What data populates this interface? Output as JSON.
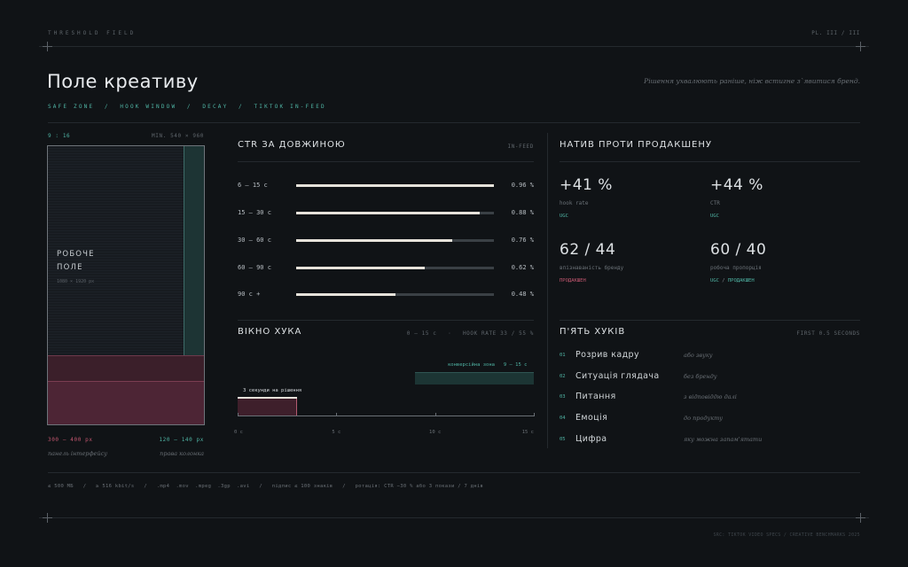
{
  "header": {
    "eyebrow": "THRESHOLD FIELD",
    "plate": "PL. III / III",
    "title": "Поле креативу",
    "tagline": "Рішення ухвалюють раніше, ніж встигне з`явитися бренд.",
    "subnav": "SAFE ZONE  /  HOOK WINDOW  /  DECAY  /  TIKTOK IN-FEED"
  },
  "phone": {
    "ratio": "9 : 16",
    "min": "MIN. 540 × 960",
    "work_line1": "РОБОЧЕ",
    "work_line2": "ПОЛЕ",
    "work_size": "1080 × 1920 px",
    "bottom_px": "300 – 400 px",
    "bottom_label": "панель інтерфейсу",
    "right_px": "120 – 140 px",
    "right_label": "права колонка"
  },
  "ctr": {
    "title": "CTR ЗА ДОВЖИНОЮ",
    "tag": "IN-FEED",
    "rows": [
      {
        "label": "6 – 15 с",
        "value": "0.96 %",
        "fraction": 1.0
      },
      {
        "label": "15 – 30 с",
        "value": "0.88 %",
        "fraction": 0.93
      },
      {
        "label": "30 – 60 с",
        "value": "0.76 %",
        "fraction": 0.79
      },
      {
        "label": "60 – 90 с",
        "value": "0.62 %",
        "fraction": 0.65
      },
      {
        "label": "90 с +",
        "value": "0.48 %",
        "fraction": 0.5
      }
    ]
  },
  "native": {
    "title": "НАТИВ ПРОТИ ПРОДАКШЕНУ",
    "stats": [
      {
        "value": "+41 %",
        "label": "hook rate",
        "tag": "UGC",
        "tag2": ""
      },
      {
        "value": "+44 %",
        "label": "CTR",
        "tag": "UGC",
        "tag2": ""
      },
      {
        "value": "62 / 44",
        "label": "впізнаваність бренду",
        "tag": "ПРОДАКШЕН",
        "tag2": ""
      },
      {
        "value": "60 / 40",
        "label": "робоча пропорція",
        "tag": "UGC",
        "tag2": "ПРОДАКШЕН"
      }
    ],
    "slash": "/"
  },
  "hook_window": {
    "title": "ВІКНО ХУКА",
    "meta": "0 – 15 с   ·   HOOK RATE 33 / 55 %",
    "conversion_label": "конверсійна зона   9 – 15 с",
    "decision_label": "3 секунди на рішення",
    "ticks": [
      "0 с",
      "5 с",
      "10 с",
      "15 с"
    ]
  },
  "hooks": {
    "title": "П'ЯТЬ ХУКІВ",
    "tag": "FIRST 0.5 SECONDS",
    "items": [
      {
        "num": "01",
        "name": "Розрив кадру",
        "note": "або звуку"
      },
      {
        "num": "02",
        "name": "Ситуація глядача",
        "note": "без бренду"
      },
      {
        "num": "03",
        "name": "Питання",
        "note": "з відповіддю далі"
      },
      {
        "num": "04",
        "name": "Емоція",
        "note": "до продукту"
      },
      {
        "num": "05",
        "name": "Цифра",
        "note": "яку можна запам'ятати"
      }
    ]
  },
  "footer": {
    "specs": "≤ 500 МБ   /   ≥ 516 kbit/s   /   .mp4  .mov  .mpeg  .3gp  .avi   /   підпис ≤ 100 знаків   /   ротація: CTR −30 % або 3 покази / 7 днів",
    "source": "SRC: TIKTOK VIDEO SPECS / CREATIVE BENCHMARKS 2025"
  },
  "colors": {
    "teal": "#4fb4a4",
    "pink": "#c2566f",
    "bg": "#101316"
  }
}
